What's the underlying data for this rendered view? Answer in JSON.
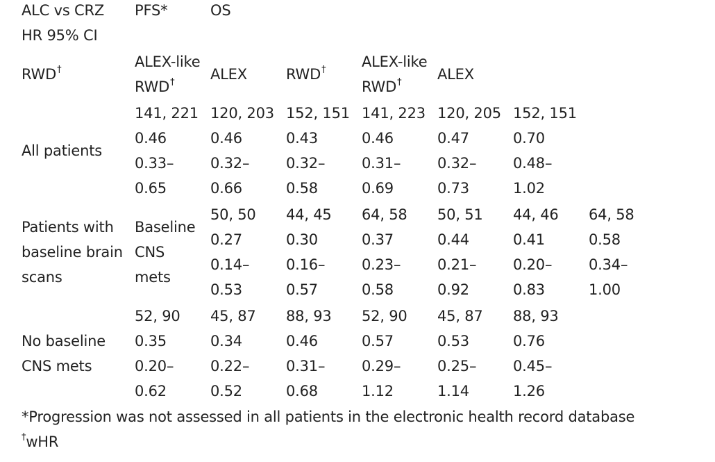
{
  "header": {
    "corner_line1": "ALC vs CRZ",
    "corner_line2": "HR 95% CI",
    "pfs": "PFS*",
    "os": "OS",
    "rwd": "RWD",
    "alex_like_line1": "ALEX-like",
    "alex_like_line2": "RWD",
    "alex": "ALEX",
    "dagger": "†"
  },
  "rows": {
    "all": {
      "label": "All patients",
      "n": [
        "141, 221",
        "120, 203",
        "152, 151",
        "141, 223",
        "120, 205",
        "152, 151"
      ],
      "hr": [
        "0.46",
        "0.46",
        "0.43",
        "0.46",
        "0.47",
        "0.70"
      ],
      "lo": [
        "0.33–",
        "0.32–",
        "0.32–",
        "0.31–",
        "0.32–",
        "0.48–"
      ],
      "hi": [
        "0.65",
        "0.66",
        "0.58",
        "0.69",
        "0.73",
        "1.02"
      ]
    },
    "brain": {
      "label_line1": "Patients with",
      "label_line2": "baseline brain",
      "label_line3": "scans",
      "sub_line1": "Baseline",
      "sub_line2": "CNS",
      "sub_line3": "mets",
      "n": [
        "50, 50",
        "44, 45",
        "64, 58",
        "50, 51",
        "44, 46",
        "64, 58"
      ],
      "hr": [
        "0.27",
        "0.30",
        "0.37",
        "0.44",
        "0.41",
        "0.58"
      ],
      "lo": [
        "0.14–",
        "0.16–",
        "0.23–",
        "0.21–",
        "0.20–",
        "0.34–"
      ],
      "hi": [
        "0.53",
        "0.57",
        "0.58",
        "0.92",
        "0.83",
        "1.00"
      ]
    },
    "nocns": {
      "label_line1": "No baseline",
      "label_line2": "CNS mets",
      "n": [
        "52, 90",
        "45, 87",
        "88, 93",
        "52, 90",
        "45, 87",
        "88, 93"
      ],
      "hr": [
        "0.35",
        "0.34",
        "0.46",
        "0.57",
        "0.53",
        "0.76"
      ],
      "lo": [
        "0.20–",
        "0.22–",
        "0.31–",
        "0.29–",
        "0.25–",
        "0.45–"
      ],
      "hi": [
        "0.62",
        "0.52",
        "0.68",
        "1.12",
        "1.14",
        "1.26"
      ]
    }
  },
  "footnotes": {
    "f1": "*Progression was not assessed in all patients in the electronic health record database",
    "f2_mark": "†",
    "f2": "wHR"
  }
}
